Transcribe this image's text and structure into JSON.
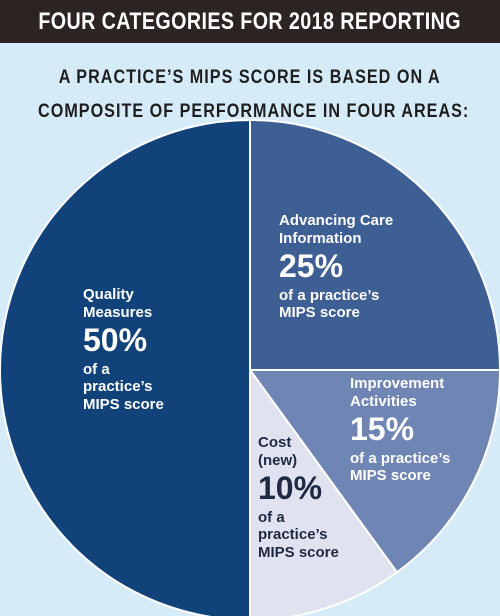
{
  "header": {
    "title": "FOUR CATEGORIES FOR 2018 REPORTING"
  },
  "subtitle": {
    "line1": "A PRACTICE’S MIPS SCORE IS BASED ON A",
    "line2": "COMPOSITE OF PERFORMANCE IN FOUR AREAS:"
  },
  "slices": {
    "quality": {
      "name_line1": "Quality",
      "name_line2": "Measures",
      "percent": "50%",
      "desc_line1": "of a",
      "desc_line2": "practice’s",
      "desc_line3": "MIPS score"
    },
    "aci": {
      "name_line1": "Advancing Care",
      "name_line2": "Information",
      "percent": "25%",
      "desc_line1": "of a practice’s",
      "desc_line2": "MIPS score"
    },
    "ia": {
      "name_line1": "Improvement",
      "name_line2": "Activities",
      "percent": "15%",
      "desc_line1": "of a  practice’s",
      "desc_line2": "MIPS score"
    },
    "cost": {
      "name_line1": "Cost",
      "name_line2": "(new)",
      "percent": "10%",
      "desc_line1": "of a",
      "desc_line2": "practice’s",
      "desc_line3": "MIPS score"
    }
  },
  "chart_data": {
    "type": "pie",
    "title": "FOUR CATEGORIES FOR 2018 REPORTING",
    "subtitle": "A PRACTICE’S MIPS SCORE IS BASED ON A COMPOSITE OF PERFORMANCE IN FOUR AREAS:",
    "slices": [
      {
        "label": "Quality Measures",
        "value": 50,
        "color": "#12427a"
      },
      {
        "label": "Advancing Care Information",
        "value": 25,
        "color": "#3e5f93"
      },
      {
        "label": "Improvement Activities",
        "value": 15,
        "color": "#6f86b5"
      },
      {
        "label": "Cost (new)",
        "value": 10,
        "color": "#e1e2ef"
      }
    ],
    "start_angle_deg": 0,
    "direction": "clockwise",
    "stroke_color": "#ffffff"
  }
}
